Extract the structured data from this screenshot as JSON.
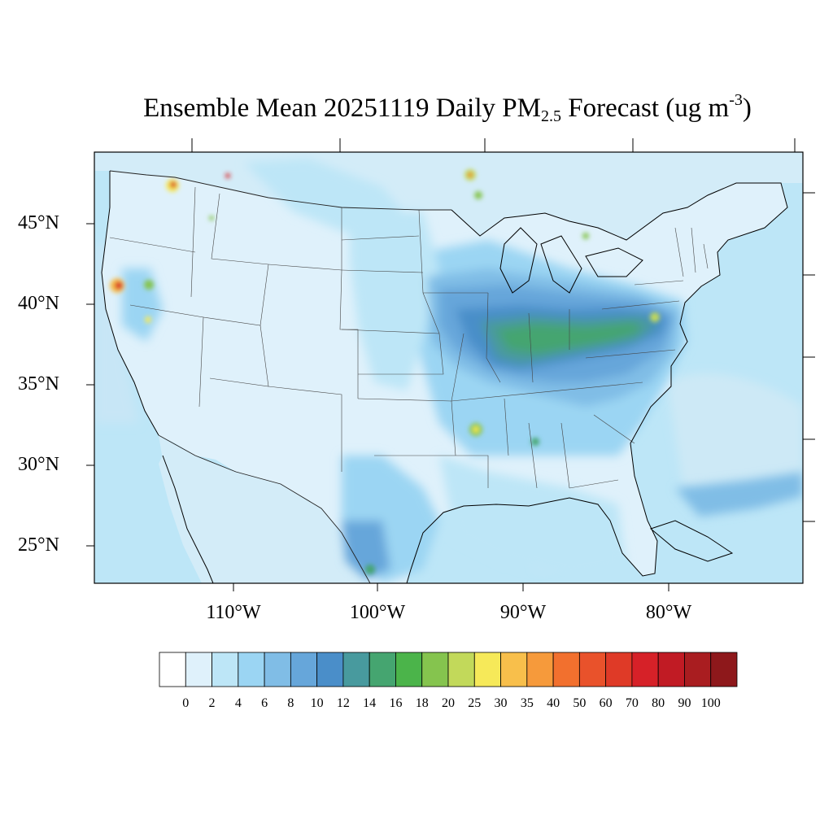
{
  "title": {
    "pre": "Ensemble Mean 20251119 Daily PM",
    "sub": "2.5",
    "mid": " Forecast (ug m",
    "sup": "-3",
    "post": ")"
  },
  "lat_labels": [
    "45°N",
    "40°N",
    "35°N",
    "30°N",
    "25°N"
  ],
  "lon_labels": [
    "110°W",
    "100°W",
    "90°W",
    "80°W"
  ],
  "colorbar": {
    "labels": [
      "0",
      "2",
      "4",
      "6",
      "8",
      "10",
      "12",
      "14",
      "16",
      "18",
      "20",
      "25",
      "30",
      "35",
      "40",
      "50",
      "60",
      "70",
      "80",
      "90",
      "100"
    ],
    "colors": [
      "#ffffff",
      "#dff1fb",
      "#bde6f7",
      "#9bd5f3",
      "#80bde6",
      "#66a6da",
      "#4a8ec9",
      "#489a9e",
      "#45a570",
      "#4bb44a",
      "#85c44e",
      "#c2d95a",
      "#f6e959",
      "#f8bf4b",
      "#f69a3b",
      "#f2702e",
      "#e9522b",
      "#df3a27",
      "#d62128",
      "#c11b24",
      "#a91d20",
      "#8e181b"
    ]
  },
  "map": {
    "ocean_color": "#bde6f7",
    "land_base_color": "#dff1fb"
  }
}
